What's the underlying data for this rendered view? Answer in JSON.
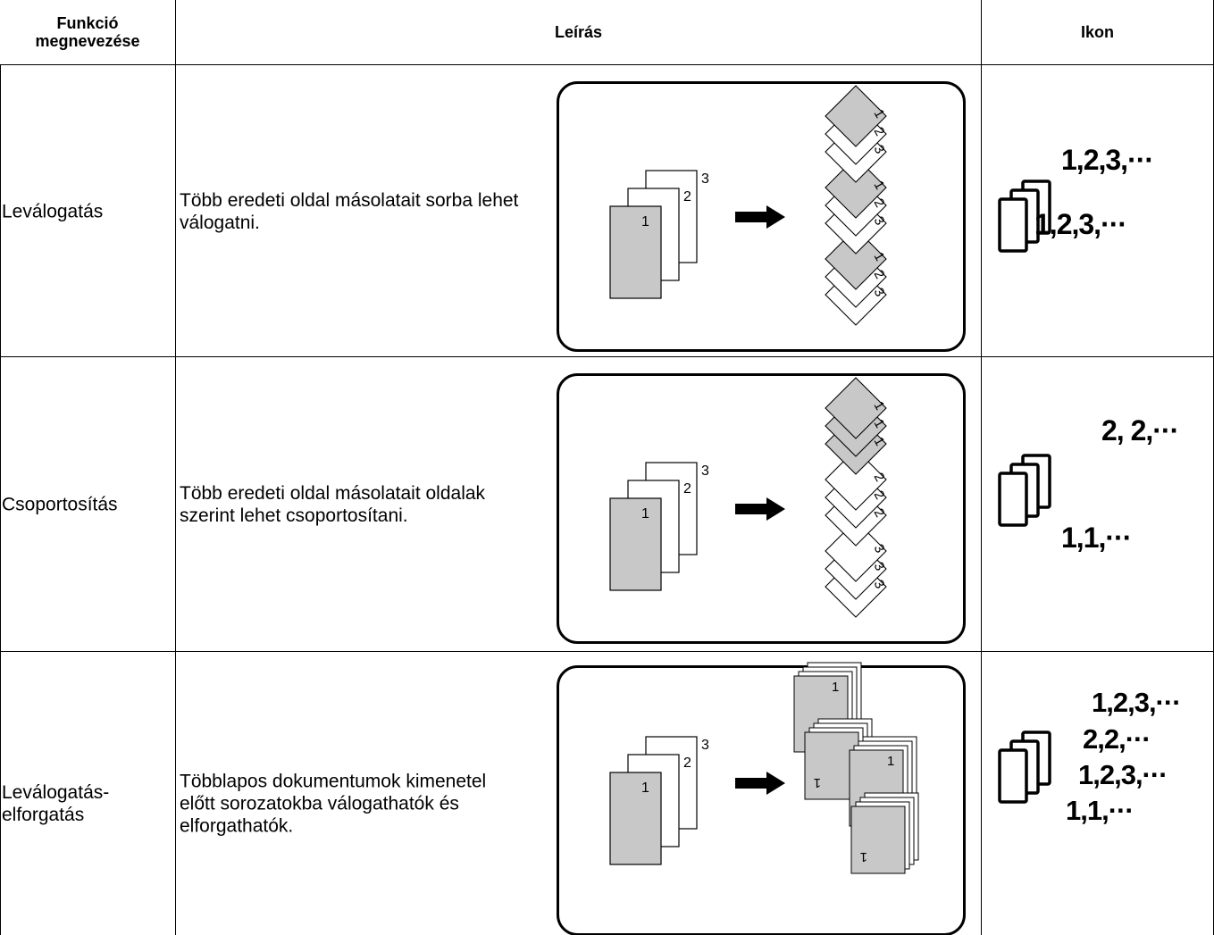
{
  "table": {
    "headers": [
      "Funkció\nmegnevezése",
      "Leírás",
      "Ikon"
    ],
    "rows": [
      {
        "name": "Leválogatás",
        "description": "Több eredeti oldal másolatait sorba lehet válogatni.",
        "originals": [
          "1",
          "2",
          "3"
        ],
        "output": [
          "1",
          "2",
          "3",
          "1",
          "2",
          "3",
          "1",
          "2",
          "3"
        ],
        "icon": [
          "1,2,3,···",
          "1,2,3,···"
        ]
      },
      {
        "name": "Csoportosítás",
        "description": "Több eredeti oldal másolatait oldalak szerint lehet csoportosítani.",
        "originals": [
          "1",
          "2",
          "3"
        ],
        "output": [
          "1",
          "1",
          "1",
          "2",
          "2",
          "2",
          "3",
          "3",
          "3"
        ],
        "icon": [
          "2, 2,···",
          "1,1,···"
        ]
      },
      {
        "name": "Leválogatás-elforgatás",
        "description": "Többlapos dokumentumok kimenetel előtt sorozatokba válogathatók és elforgathatók.",
        "originals": [
          "1",
          "2",
          "3"
        ],
        "output": [
          "1",
          "1",
          "1",
          "1"
        ],
        "icon": [
          "1,2,3,···",
          "2,2,···",
          "1,2,3,···",
          "1,1,···"
        ]
      }
    ]
  }
}
